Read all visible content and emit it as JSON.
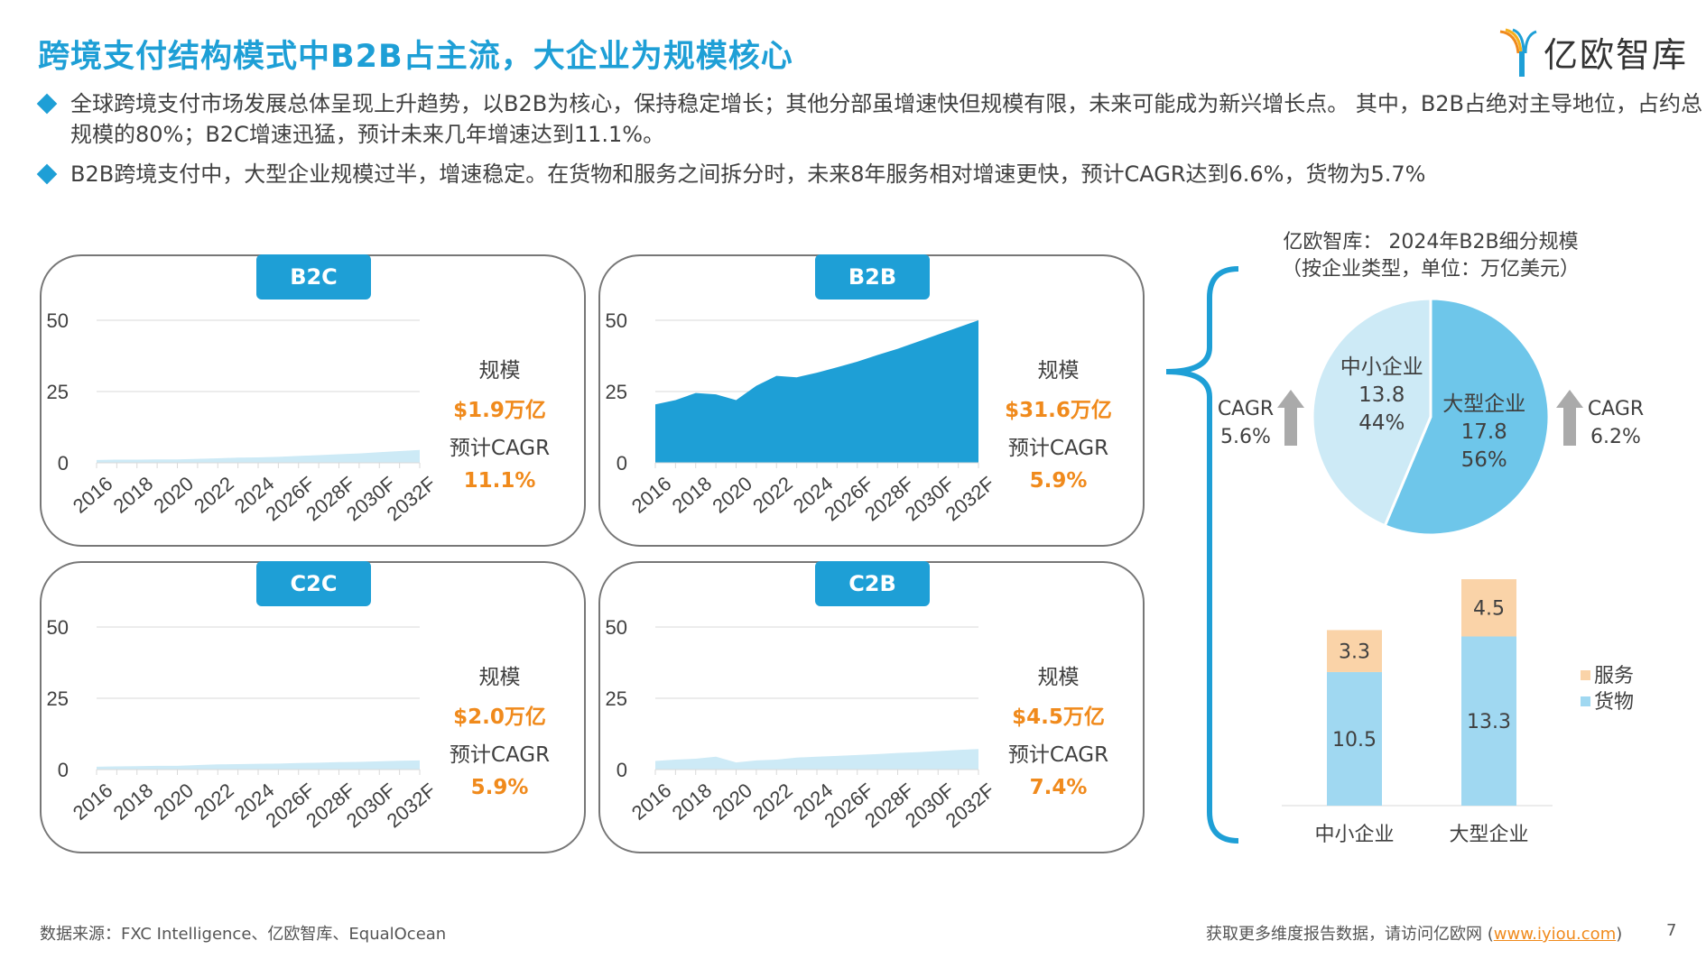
{
  "header": {
    "title": "跨境支付结构模式中B2B占主流，大企业为规模核心",
    "logo_text": "亿欧智库"
  },
  "bullets": [
    "全球跨境支付市场发展总体呈现上升趋势，以B2B为核心，保持稳定增长；其他分部虽增速快但规模有限，未来可能成为新兴增长点。 其中，B2B占绝对主导地位，占约总规模的80%；B2C增速迅猛，预计未来几年增速达到11.1%。",
    "B2B跨境支付中，大型企业规模过半，增速稳定。在货物和服务之间拆分时，未来8年服务相对增速更快，预计CAGR达到6.6%，货物为5.7%"
  ],
  "colors": {
    "accent": "#1e9fd6",
    "orange": "#f08a1c",
    "light_area": "#cdeaf6",
    "pie_large": "#6ec6ea",
    "pie_small": "#cdeaf6",
    "goods": "#a0d8f1",
    "services": "#fad3a8",
    "arrow": "#aaaaaa"
  },
  "chart_data": [
    {
      "type": "area",
      "title": "B2B",
      "size_label": "规模",
      "size_value": "$31.6万亿",
      "cagr_label": "预计CAGR",
      "cagr_value": "5.9%",
      "color": "#1e9fd6",
      "x": [
        "2016",
        "2017",
        "2018",
        "2019",
        "2020",
        "2021",
        "2022",
        "2023",
        "2024",
        "2025",
        "2026F",
        "2027F",
        "2028F",
        "2029F",
        "2030F",
        "2031F",
        "2032F"
      ],
      "values": [
        20.5,
        22,
        24.5,
        24,
        22,
        27,
        30.5,
        30,
        31.6,
        33.5,
        35.5,
        37.8,
        40,
        42.5,
        45,
        47.5,
        50
      ],
      "ylim": [
        0,
        50
      ],
      "yticks": [
        0,
        25,
        50
      ],
      "xtick_labels": [
        "2016",
        "2018",
        "2020",
        "2022",
        "2024",
        "2026F",
        "2028F",
        "2030F",
        "2032F"
      ],
      "grid": true
    },
    {
      "type": "area",
      "title": "B2C",
      "size_label": "规模",
      "size_value": "$1.9万亿",
      "cagr_label": "预计CAGR",
      "cagr_value": "11.1%",
      "color": "#cdeaf6",
      "x": [
        "2016",
        "2017",
        "2018",
        "2019",
        "2020",
        "2021",
        "2022",
        "2023",
        "2024",
        "2025",
        "2026F",
        "2027F",
        "2028F",
        "2029F",
        "2030F",
        "2031F",
        "2032F"
      ],
      "values": [
        1.0,
        1.1,
        1.1,
        1.2,
        1.2,
        1.4,
        1.6,
        1.8,
        1.9,
        2.1,
        2.4,
        2.7,
        3.0,
        3.3,
        3.7,
        4.1,
        4.5
      ],
      "ylim": [
        0,
        50
      ],
      "yticks": [
        0,
        25,
        50
      ],
      "xtick_labels": [
        "2016",
        "2018",
        "2020",
        "2022",
        "2024",
        "2026F",
        "2028F",
        "2030F",
        "2032F"
      ],
      "grid": true
    },
    {
      "type": "area",
      "title": "C2C",
      "size_label": "规模",
      "size_value": "$2.0万亿",
      "cagr_label": "预计CAGR",
      "cagr_value": "5.9%",
      "color": "#cdeaf6",
      "x": [
        "2016",
        "2017",
        "2018",
        "2019",
        "2020",
        "2021",
        "2022",
        "2023",
        "2024",
        "2025",
        "2026F",
        "2027F",
        "2028F",
        "2029F",
        "2030F",
        "2031F",
        "2032F"
      ],
      "values": [
        1.0,
        1.1,
        1.2,
        1.3,
        1.3,
        1.6,
        1.8,
        1.9,
        2.0,
        2.1,
        2.3,
        2.4,
        2.6,
        2.7,
        2.9,
        3.1,
        3.2
      ],
      "ylim": [
        0,
        50
      ],
      "yticks": [
        0,
        25,
        50
      ],
      "xtick_labels": [
        "2016",
        "2018",
        "2020",
        "2022",
        "2024",
        "2026F",
        "2028F",
        "2030F",
        "2032F"
      ],
      "grid": true
    },
    {
      "type": "area",
      "title": "C2B",
      "size_label": "规模",
      "size_value": "$4.5万亿",
      "cagr_label": "预计CAGR",
      "cagr_value": "7.4%",
      "color": "#cdeaf6",
      "x": [
        "2016",
        "2017",
        "2018",
        "2019",
        "2020",
        "2021",
        "2022",
        "2023",
        "2024",
        "2025",
        "2026F",
        "2027F",
        "2028F",
        "2029F",
        "2030F",
        "2031F",
        "2032F"
      ],
      "values": [
        3.0,
        3.5,
        3.8,
        4.5,
        2.5,
        3.2,
        3.5,
        4.2,
        4.5,
        4.8,
        5.1,
        5.4,
        5.8,
        6.1,
        6.5,
        6.9,
        7.2
      ],
      "ylim": [
        0,
        50
      ],
      "yticks": [
        0,
        25,
        50
      ],
      "xtick_labels": [
        "2016",
        "2018",
        "2020",
        "2022",
        "2024",
        "2026F",
        "2028F",
        "2030F",
        "2032F"
      ],
      "grid": true
    },
    {
      "type": "pie",
      "title": "亿欧智库： 2024年B2B细分规模",
      "subtitle": "（按企业类型，单位：万亿美元）",
      "slices": [
        {
          "name": "大型企业",
          "value": 17.8,
          "percent": "56%",
          "cagr_label": "CAGR",
          "cagr": "6.2%"
        },
        {
          "name": "中小企业",
          "value": 13.8,
          "percent": "44%",
          "cagr_label": "CAGR",
          "cagr": "5.6%"
        }
      ]
    },
    {
      "type": "bar",
      "stacked": true,
      "categories": [
        "中小企业",
        "大型企业"
      ],
      "series": [
        {
          "name": "货物",
          "values": [
            10.5,
            13.3
          ]
        },
        {
          "name": "服务",
          "values": [
            3.3,
            4.5
          ]
        }
      ],
      "legend": "right"
    }
  ],
  "footer": {
    "source": "数据来源：FXC Intelligence、亿欧智库、EqualOcean",
    "more_text": "获取更多维度报告数据，请访问亿欧网 (",
    "link": "www.iyiou.com",
    "close": ")",
    "page": "7"
  }
}
